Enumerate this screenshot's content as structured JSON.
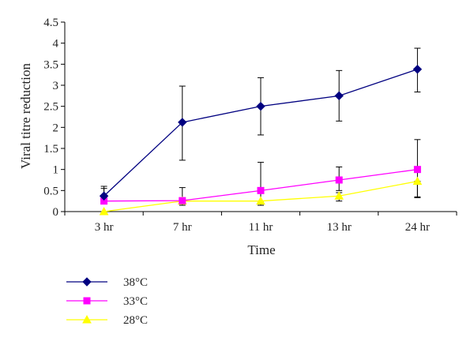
{
  "chart_data": {
    "type": "line",
    "title": "",
    "xlabel": "Time",
    "ylabel": "Viral titre reduction",
    "categories": [
      "3 hr",
      "7 hr",
      "11 hr",
      "13 hr",
      "24 hr"
    ],
    "ylim": [
      0,
      4.5
    ],
    "yticks": [
      "0",
      "0.5",
      "1",
      "1.5",
      "2",
      "2.5",
      "3",
      "3.5",
      "4",
      "4.5"
    ],
    "grid": false,
    "legend_position": "bottom-left",
    "series": [
      {
        "name": "38°C",
        "color": "#000080",
        "marker": "diamond",
        "values": [
          0.37,
          2.12,
          2.5,
          2.75,
          3.38
        ],
        "error": [
          [
            0.37,
            0.6
          ],
          [
            1.22,
            2.98
          ],
          [
            1.82,
            3.18
          ],
          [
            2.15,
            3.35
          ],
          [
            2.84,
            3.88
          ]
        ]
      },
      {
        "name": "33°C",
        "color": "#ff00ff",
        "marker": "square",
        "values": [
          0.25,
          0.26,
          0.5,
          0.75,
          1.0
        ],
        "error": [
          [
            0.25,
            0.55
          ],
          [
            0.26,
            0.57
          ],
          [
            0.2,
            1.17
          ],
          [
            0.5,
            1.06
          ],
          [
            0.33,
            1.71
          ]
        ]
      },
      {
        "name": "28°C",
        "color": "#ffff00",
        "marker": "triangle",
        "values": [
          0.0,
          0.25,
          0.25,
          0.37,
          0.72
        ],
        "error": [
          [
            0.0,
            0.0
          ],
          [
            0.15,
            0.25
          ],
          [
            0.15,
            0.25
          ],
          [
            0.25,
            0.45
          ],
          [
            0.35,
            0.72
          ]
        ]
      }
    ]
  }
}
